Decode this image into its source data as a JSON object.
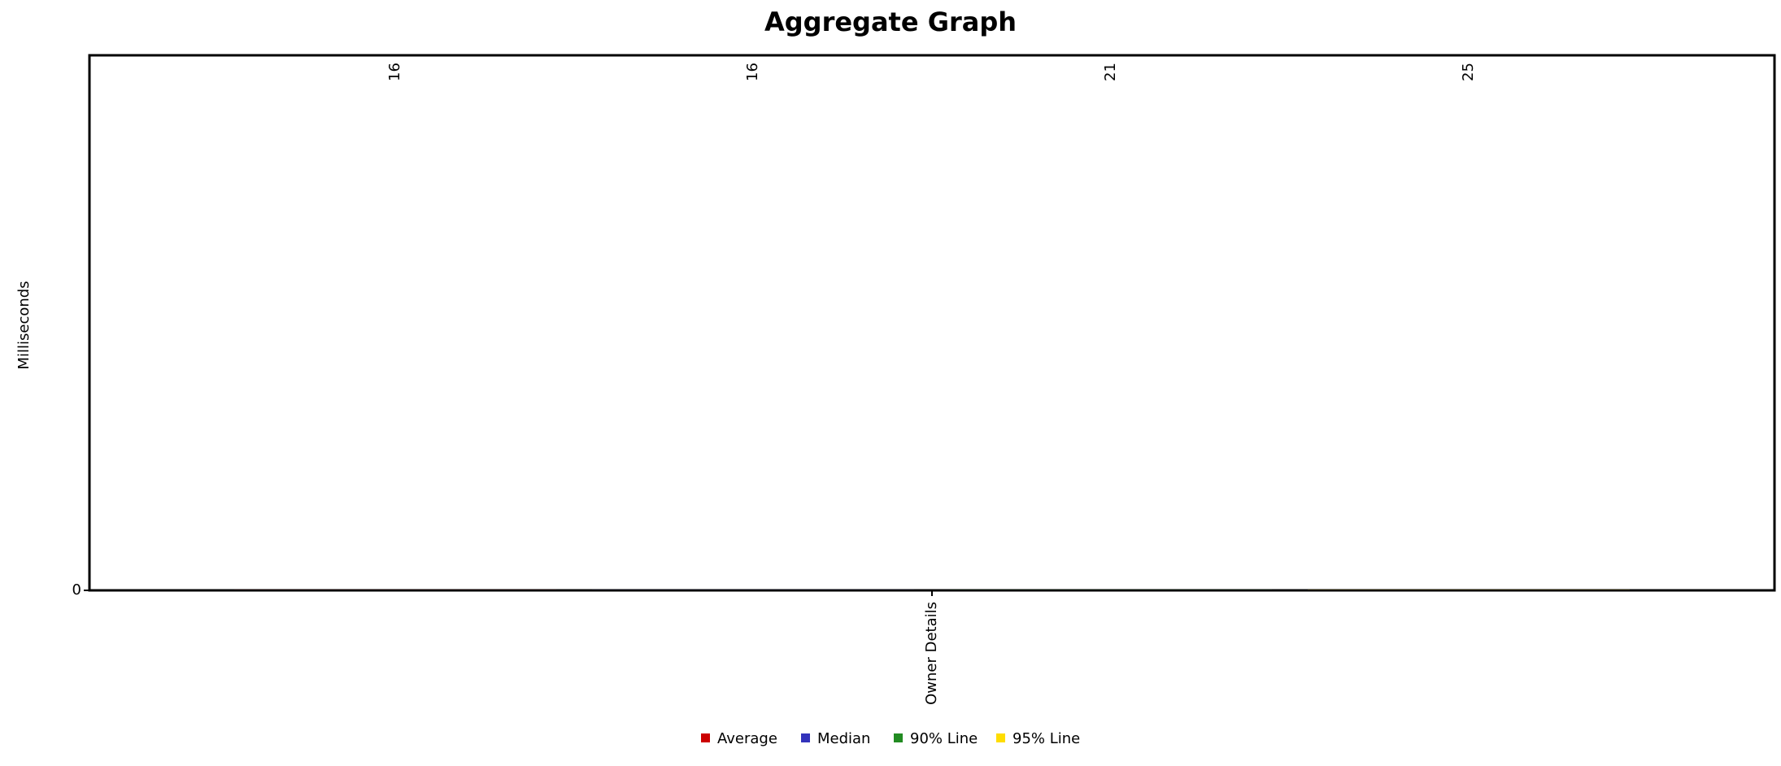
{
  "chart_data": {
    "type": "bar",
    "title": "Aggregate Graph",
    "y_label": "Milliseconds",
    "categories": [
      "Owner Details"
    ],
    "series": [
      {
        "name": "Average",
        "color": "#cc0000",
        "values": [
          16
        ]
      },
      {
        "name": "Median",
        "color": "#3333bb",
        "values": [
          16
        ]
      },
      {
        "name": "90% Line",
        "color": "#228b22",
        "values": [
          21
        ]
      },
      {
        "name": "95% Line",
        "color": "#ffdd00",
        "values": [
          25
        ]
      }
    ],
    "ylim": [
      0,
      100000
    ],
    "yticks": [
      0
    ],
    "grid": false
  }
}
